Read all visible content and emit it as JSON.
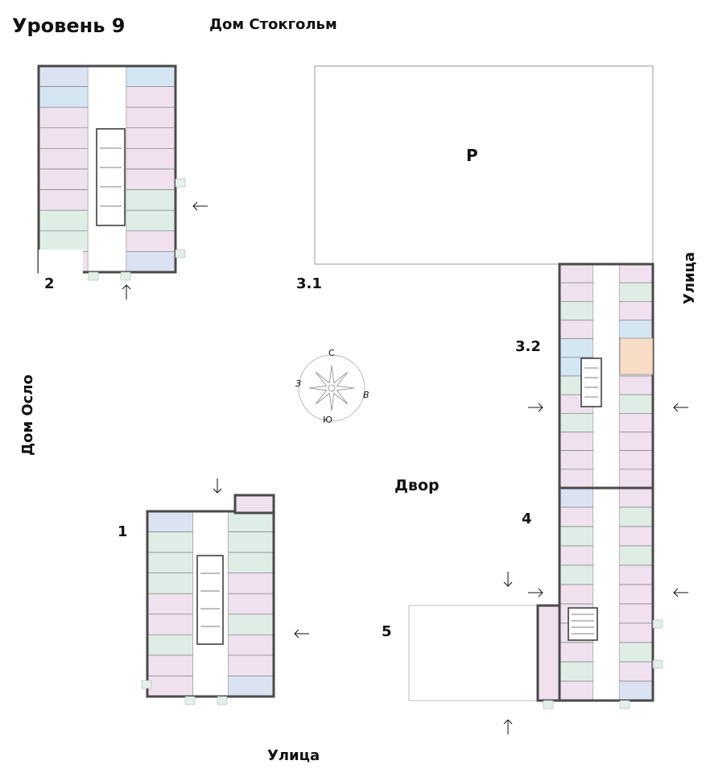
{
  "header": {
    "level_title": "Уровень 9",
    "house_top": "Дом Стокгольм"
  },
  "site_labels": {
    "house_left": "Дом Осло",
    "street_right": "Улица",
    "street_bottom": "Улица",
    "yard": "Двор",
    "parking": "P"
  },
  "sections": [
    {
      "id": "2",
      "label": "2"
    },
    {
      "id": "3.1",
      "label": "3.1"
    },
    {
      "id": "3.2",
      "label": "3.2"
    },
    {
      "id": "4",
      "label": "4"
    },
    {
      "id": "1",
      "label": "1"
    },
    {
      "id": "5",
      "label": "5"
    }
  ],
  "compass": {
    "north": "С",
    "south": "Ю",
    "west": "З",
    "east": "В"
  },
  "colors": {
    "wall": "#4a4a4a",
    "studio_pink": "#efe1ee",
    "one_room_green": "#deeee6",
    "two_room_blue": "#dbe3f3",
    "three_room_lightblue": "#d5e6f3",
    "orange": "#f7dcc6",
    "core": "#ffffff",
    "balcony": "#e4efe9"
  }
}
